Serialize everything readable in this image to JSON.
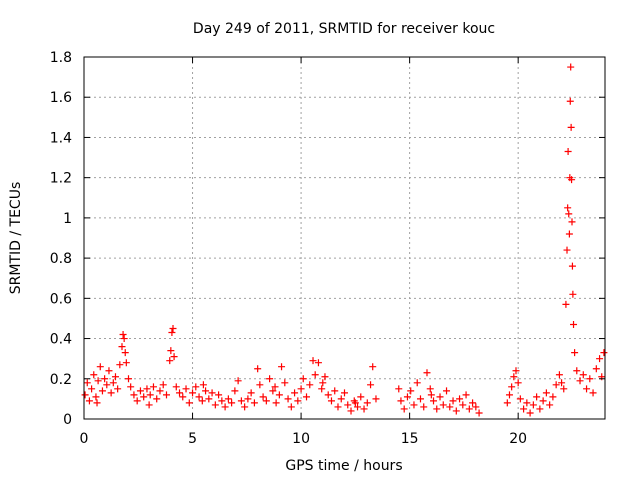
{
  "chart_data": {
    "type": "scatter",
    "title": "Day 249 of 2011, SRMTID for receiver kouc",
    "xlabel": "GPS time / hours",
    "ylabel": "SRMTID / TECUs",
    "xlim": [
      0,
      24
    ],
    "ylim": [
      0,
      1.8
    ],
    "x_ticks": [
      0,
      5,
      10,
      15,
      20
    ],
    "y_ticks": [
      0,
      0.2,
      0.4,
      0.6,
      0.8,
      1,
      1.2,
      1.4,
      1.6,
      1.8
    ],
    "x_tick_labels": [
      "0",
      "5",
      "10",
      "15",
      "20"
    ],
    "y_tick_labels": [
      "0",
      "0.2",
      "0.4",
      "0.6",
      "0.8",
      "1",
      "1.2",
      "1.4",
      "1.6",
      "1.8"
    ],
    "grid": true,
    "marker": "plus",
    "color": "#ff0000",
    "points": [
      [
        0.05,
        0.12
      ],
      [
        0.15,
        0.18
      ],
      [
        0.25,
        0.09
      ],
      [
        0.35,
        0.15
      ],
      [
        0.45,
        0.22
      ],
      [
        0.55,
        0.11
      ],
      [
        0.65,
        0.19
      ],
      [
        0.75,
        0.26
      ],
      [
        0.85,
        0.14
      ],
      [
        0.95,
        0.2
      ],
      [
        1.05,
        0.17
      ],
      [
        1.15,
        0.24
      ],
      [
        1.25,
        0.13
      ],
      [
        1.35,
        0.18
      ],
      [
        1.45,
        0.21
      ],
      [
        1.55,
        0.15
      ],
      [
        1.65,
        0.27
      ],
      [
        1.75,
        0.36
      ],
      [
        1.8,
        0.42
      ],
      [
        1.85,
        0.4
      ],
      [
        1.9,
        0.33
      ],
      [
        1.95,
        0.28
      ],
      [
        2.05,
        0.2
      ],
      [
        2.15,
        0.16
      ],
      [
        2.3,
        0.12
      ],
      [
        2.45,
        0.09
      ],
      [
        2.6,
        0.14
      ],
      [
        2.75,
        0.11
      ],
      [
        2.9,
        0.15
      ],
      [
        3.05,
        0.12
      ],
      [
        3.2,
        0.16
      ],
      [
        3.35,
        0.1
      ],
      [
        3.5,
        0.14
      ],
      [
        3.65,
        0.17
      ],
      [
        3.8,
        0.12
      ],
      [
        3.95,
        0.29
      ],
      [
        4.0,
        0.34
      ],
      [
        4.05,
        0.43
      ],
      [
        4.1,
        0.45
      ],
      [
        4.15,
        0.31
      ],
      [
        4.25,
        0.16
      ],
      [
        4.4,
        0.13
      ],
      [
        4.55,
        0.11
      ],
      [
        4.7,
        0.15
      ],
      [
        4.85,
        0.08
      ],
      [
        5.0,
        0.13
      ],
      [
        5.15,
        0.16
      ],
      [
        5.3,
        0.11
      ],
      [
        5.45,
        0.09
      ],
      [
        5.6,
        0.14
      ],
      [
        5.75,
        0.1
      ],
      [
        5.9,
        0.13
      ],
      [
        6.05,
        0.07
      ],
      [
        6.2,
        0.12
      ],
      [
        6.35,
        0.09
      ],
      [
        6.5,
        0.06
      ],
      [
        6.65,
        0.1
      ],
      [
        6.8,
        0.08
      ],
      [
        6.95,
        0.14
      ],
      [
        7.1,
        0.19
      ],
      [
        7.25,
        0.09
      ],
      [
        7.4,
        0.06
      ],
      [
        7.55,
        0.1
      ],
      [
        7.7,
        0.13
      ],
      [
        7.85,
        0.08
      ],
      [
        8.0,
        0.25
      ],
      [
        8.1,
        0.17
      ],
      [
        8.25,
        0.11
      ],
      [
        8.4,
        0.09
      ],
      [
        8.55,
        0.2
      ],
      [
        8.7,
        0.14
      ],
      [
        8.85,
        0.08
      ],
      [
        9.0,
        0.12
      ],
      [
        9.1,
        0.26
      ],
      [
        9.25,
        0.18
      ],
      [
        9.4,
        0.1
      ],
      [
        9.55,
        0.06
      ],
      [
        9.7,
        0.13
      ],
      [
        9.85,
        0.09
      ],
      [
        10.0,
        0.15
      ],
      [
        10.1,
        0.2
      ],
      [
        10.25,
        0.11
      ],
      [
        10.4,
        0.17
      ],
      [
        10.55,
        0.29
      ],
      [
        10.65,
        0.22
      ],
      [
        10.8,
        0.28
      ],
      [
        10.95,
        0.15
      ],
      [
        11.1,
        0.21
      ],
      [
        11.25,
        0.12
      ],
      [
        11.4,
        0.09
      ],
      [
        11.55,
        0.14
      ],
      [
        11.7,
        0.06
      ],
      [
        11.85,
        0.1
      ],
      [
        12.0,
        0.13
      ],
      [
        12.15,
        0.07
      ],
      [
        12.3,
        0.04
      ],
      [
        12.45,
        0.09
      ],
      [
        12.6,
        0.06
      ],
      [
        12.75,
        0.11
      ],
      [
        12.9,
        0.05
      ],
      [
        13.05,
        0.08
      ],
      [
        13.2,
        0.17
      ],
      [
        13.3,
        0.26
      ],
      [
        13.45,
        0.1
      ],
      [
        14.5,
        0.15
      ],
      [
        14.6,
        0.09
      ],
      [
        14.75,
        0.05
      ],
      [
        14.9,
        0.11
      ],
      [
        15.05,
        0.14
      ],
      [
        15.2,
        0.07
      ],
      [
        15.35,
        0.18
      ],
      [
        15.5,
        0.1
      ],
      [
        15.65,
        0.06
      ],
      [
        15.8,
        0.23
      ],
      [
        15.95,
        0.15
      ],
      [
        16.1,
        0.09
      ],
      [
        16.25,
        0.05
      ],
      [
        16.4,
        0.11
      ],
      [
        16.55,
        0.07
      ],
      [
        16.7,
        0.14
      ],
      [
        16.85,
        0.06
      ],
      [
        17.0,
        0.09
      ],
      [
        17.15,
        0.04
      ],
      [
        17.3,
        0.1
      ],
      [
        17.45,
        0.07
      ],
      [
        17.6,
        0.12
      ],
      [
        17.75,
        0.05
      ],
      [
        17.9,
        0.08
      ],
      [
        18.05,
        0.06
      ],
      [
        18.2,
        0.03
      ],
      [
        19.5,
        0.08
      ],
      [
        19.6,
        0.12
      ],
      [
        19.7,
        0.16
      ],
      [
        19.8,
        0.21
      ],
      [
        19.9,
        0.24
      ],
      [
        20.0,
        0.18
      ],
      [
        20.1,
        0.1
      ],
      [
        20.25,
        0.05
      ],
      [
        20.4,
        0.08
      ],
      [
        20.55,
        0.03
      ],
      [
        20.7,
        0.07
      ],
      [
        20.85,
        0.11
      ],
      [
        21.0,
        0.05
      ],
      [
        21.15,
        0.09
      ],
      [
        21.3,
        0.13
      ],
      [
        21.45,
        0.07
      ],
      [
        21.6,
        0.11
      ],
      [
        21.75,
        0.17
      ],
      [
        21.9,
        0.22
      ],
      [
        22.0,
        0.18
      ],
      [
        22.1,
        0.15
      ],
      [
        22.2,
        0.57
      ],
      [
        22.25,
        0.84
      ],
      [
        22.28,
        1.05
      ],
      [
        22.3,
        1.33
      ],
      [
        22.33,
        1.02
      ],
      [
        22.36,
        0.92
      ],
      [
        22.38,
        1.2
      ],
      [
        22.4,
        1.58
      ],
      [
        22.42,
        1.75
      ],
      [
        22.44,
        1.45
      ],
      [
        22.46,
        1.19
      ],
      [
        22.48,
        0.98
      ],
      [
        22.5,
        0.76
      ],
      [
        22.52,
        0.62
      ],
      [
        22.55,
        0.47
      ],
      [
        22.6,
        0.33
      ],
      [
        22.7,
        0.24
      ],
      [
        22.85,
        0.19
      ],
      [
        23.0,
        0.22
      ],
      [
        23.15,
        0.15
      ],
      [
        23.3,
        0.2
      ],
      [
        23.45,
        0.13
      ],
      [
        23.6,
        0.25
      ],
      [
        23.75,
        0.3
      ],
      [
        23.85,
        0.21
      ],
      [
        23.95,
        0.33
      ],
      [
        12.5,
        0.08
      ],
      [
        16.0,
        0.12
      ],
      [
        5.5,
        0.17
      ],
      [
        0.6,
        0.08
      ],
      [
        3.0,
        0.07
      ],
      [
        8.8,
        0.16
      ],
      [
        11.0,
        0.18
      ]
    ]
  }
}
